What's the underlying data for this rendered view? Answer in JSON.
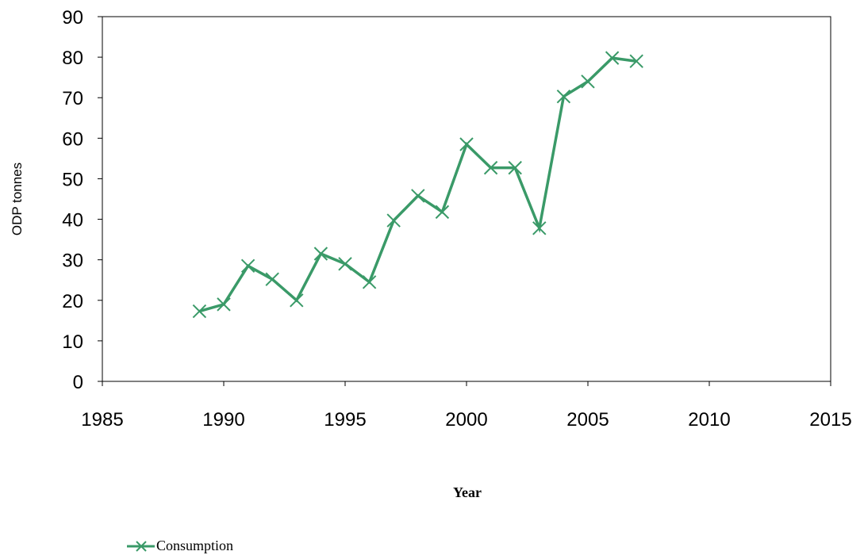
{
  "chart_data": {
    "type": "line",
    "title": "",
    "xlabel": "Year",
    "ylabel": "ODP tonnes",
    "xlim": [
      1985,
      2015
    ],
    "ylim": [
      0,
      90
    ],
    "xticks": [
      1985,
      1990,
      1995,
      2000,
      2005,
      2010,
      2015
    ],
    "yticks": [
      0,
      10,
      20,
      30,
      40,
      50,
      60,
      70,
      80,
      90
    ],
    "grid": false,
    "legend_position": "bottom-left",
    "series": [
      {
        "name": "Consumption",
        "color": "#3a9a68",
        "marker": "x",
        "x": [
          1989,
          1990,
          1991,
          1992,
          1993,
          1994,
          1995,
          1996,
          1997,
          1998,
          1999,
          2000,
          2001,
          2002,
          2003,
          2004,
          2005,
          2006,
          2007
        ],
        "y": [
          17.3,
          19,
          28.5,
          25.2,
          20,
          31.5,
          29,
          24.5,
          39.7,
          45.8,
          41.8,
          58.5,
          52.7,
          52.7,
          37.8,
          70.3,
          74,
          79.8,
          79
        ]
      }
    ]
  }
}
